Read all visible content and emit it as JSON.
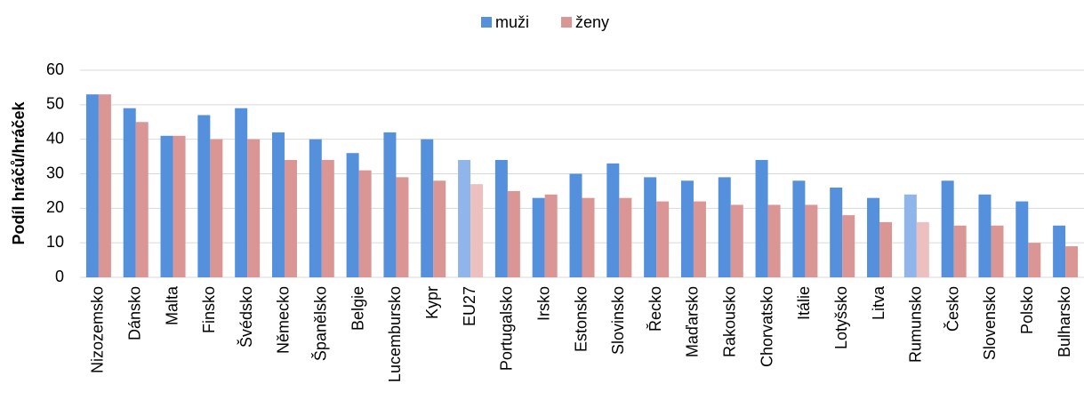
{
  "chart_data": {
    "type": "bar",
    "y_label": "Podíl hráčů/hráček",
    "categories": [
      "Nizozemsko",
      "Dánsko",
      "Malta",
      "Finsko",
      "Švédsko",
      "Německo",
      "Španělsko",
      "Belgie",
      "Lucembursko",
      "Kypr",
      "EU27",
      "Portugalsko",
      "Irsko",
      "Estonsko",
      "Slovinsko",
      "Řecko",
      "Maďarsko",
      "Rakousko",
      "Chorvatsko",
      "Itálie",
      "Lotyšsko",
      "Litva",
      "Rumunsko",
      "Česko",
      "Slovensko",
      "Polsko",
      "Bulharsko"
    ],
    "series": [
      {
        "name": "muži",
        "color": "#5590dd",
        "highlight_color": "#90b5ea",
        "values": [
          53,
          49,
          41,
          47,
          49,
          42,
          40,
          36,
          42,
          40,
          34,
          34,
          23,
          30,
          33,
          29,
          28,
          29,
          34,
          28,
          26,
          23,
          24,
          28,
          24,
          22,
          15
        ]
      },
      {
        "name": "ženy",
        "color": "#d99694",
        "highlight_color": "#ecc0bf",
        "values": [
          53,
          45,
          41,
          40,
          40,
          34,
          34,
          31,
          29,
          28,
          27,
          25,
          24,
          23,
          23,
          22,
          22,
          21,
          21,
          21,
          18,
          16,
          16,
          15,
          15,
          10,
          9
        ]
      }
    ],
    "highlighted": [
      10,
      22
    ],
    "ylim": [
      0,
      60
    ],
    "yticks": [
      0,
      10,
      20,
      30,
      40,
      50,
      60
    ],
    "grid": true,
    "legend": "top"
  }
}
